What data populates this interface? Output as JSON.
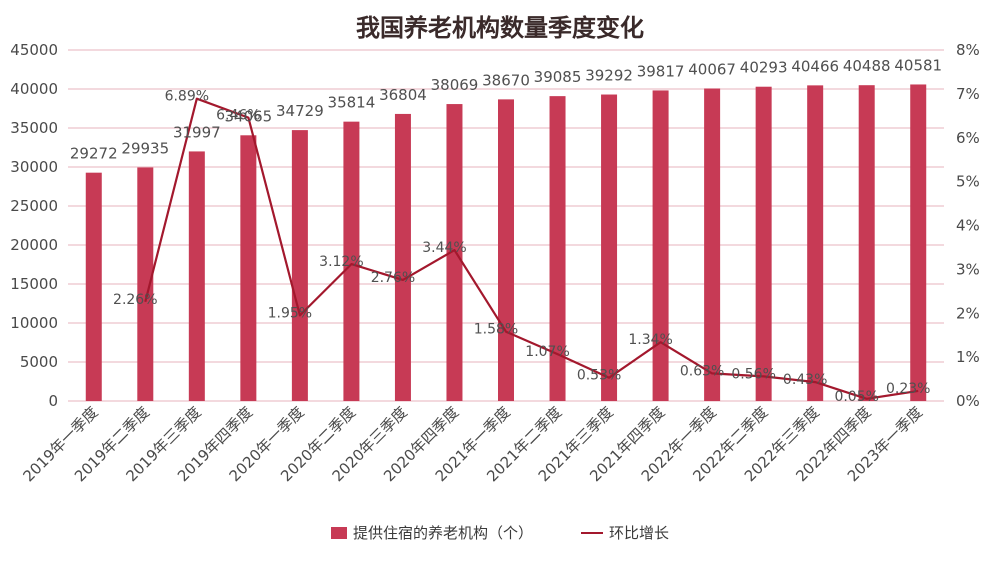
{
  "colors": {
    "bar": "#c73a55",
    "line": "#a3182d",
    "grid": "#e7b3bd"
  },
  "chart_data": {
    "type": "bar+line",
    "title": "我国养老机构数量季度变化",
    "categories": [
      "2019年一季度",
      "2019年二季度",
      "2019年三季度",
      "2019年四季度",
      "2020年一季度",
      "2020年二季度",
      "2020年三季度",
      "2020年四季度",
      "2021年一季度",
      "2021年二季度",
      "2021年三季度",
      "2021年四季度",
      "2022年一季度",
      "2022年二季度",
      "2022年三季度",
      "2022年四季度",
      "2023年一季度"
    ],
    "series": [
      {
        "name": "提供住宿的养老机构（个）",
        "type": "bar",
        "axis": "left",
        "values": [
          29272,
          29935,
          31997,
          34065,
          34729,
          35814,
          36804,
          38069,
          38670,
          39085,
          39292,
          39817,
          40067,
          40293,
          40466,
          40488,
          40581
        ]
      },
      {
        "name": "环比增长",
        "type": "line",
        "axis": "right",
        "values": [
          null,
          2.26,
          6.89,
          6.46,
          1.95,
          3.12,
          2.76,
          3.44,
          1.58,
          1.07,
          0.53,
          1.34,
          0.63,
          0.56,
          0.43,
          0.05,
          0.23
        ],
        "labels": [
          "",
          "2.26%",
          "6.89%",
          "6.46%",
          "1.95%",
          "3.12%",
          "2.76%",
          "3.44%",
          "1.58%",
          "1.07%",
          "0.53%",
          "1.34%",
          "0.63%",
          "0.56%",
          "0.43%",
          "0.05%",
          "0.23%"
        ]
      }
    ],
    "ylim_left": [
      0,
      45000
    ],
    "yticks_left": [
      "0",
      "5000",
      "10000",
      "15000",
      "20000",
      "25000",
      "30000",
      "35000",
      "40000",
      "45000"
    ],
    "ylim_right": [
      0,
      8
    ],
    "yticks_right": [
      "0%",
      "1%",
      "2%",
      "3%",
      "4%",
      "5%",
      "6%",
      "7%",
      "8%"
    ],
    "grid": true,
    "legend_position": "bottom"
  }
}
